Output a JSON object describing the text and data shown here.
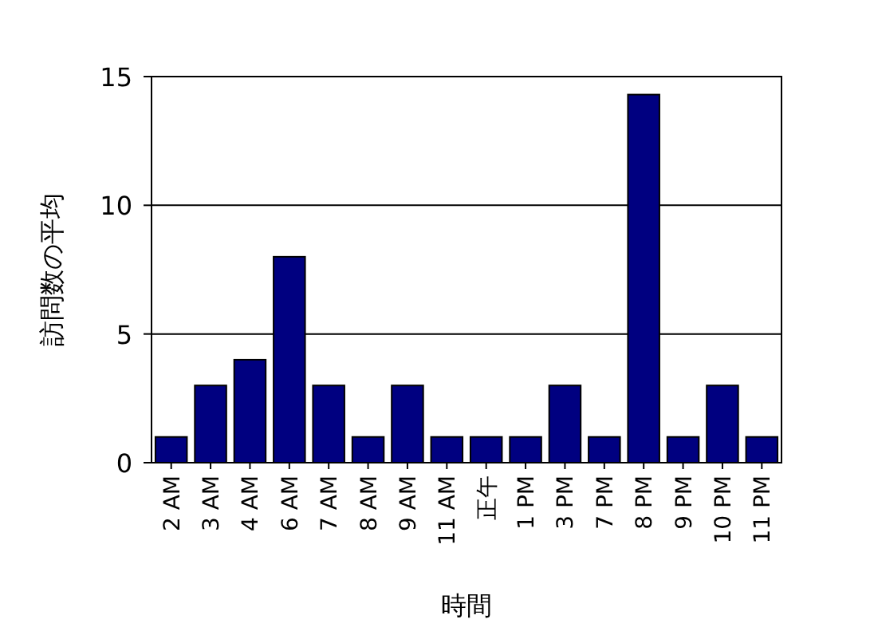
{
  "chart_data": {
    "type": "bar",
    "xlabel": "時間",
    "ylabel": "訪問数の平均",
    "categories": [
      "2 AM",
      "3 AM",
      "4 AM",
      "6 AM",
      "7 AM",
      "8 AM",
      "9 AM",
      "11 AM",
      "正午",
      "1 PM",
      "3 PM",
      "7 PM",
      "8 PM",
      "9 PM",
      "10 PM",
      "11 PM"
    ],
    "values": [
      1,
      3,
      4,
      8,
      3,
      1,
      3,
      1,
      1,
      1,
      3,
      1,
      14.3,
      1,
      3,
      1
    ],
    "color": "#000080",
    "ylim": [
      0,
      15
    ],
    "yticks": [
      0,
      5,
      10,
      15
    ],
    "grid": "y"
  }
}
